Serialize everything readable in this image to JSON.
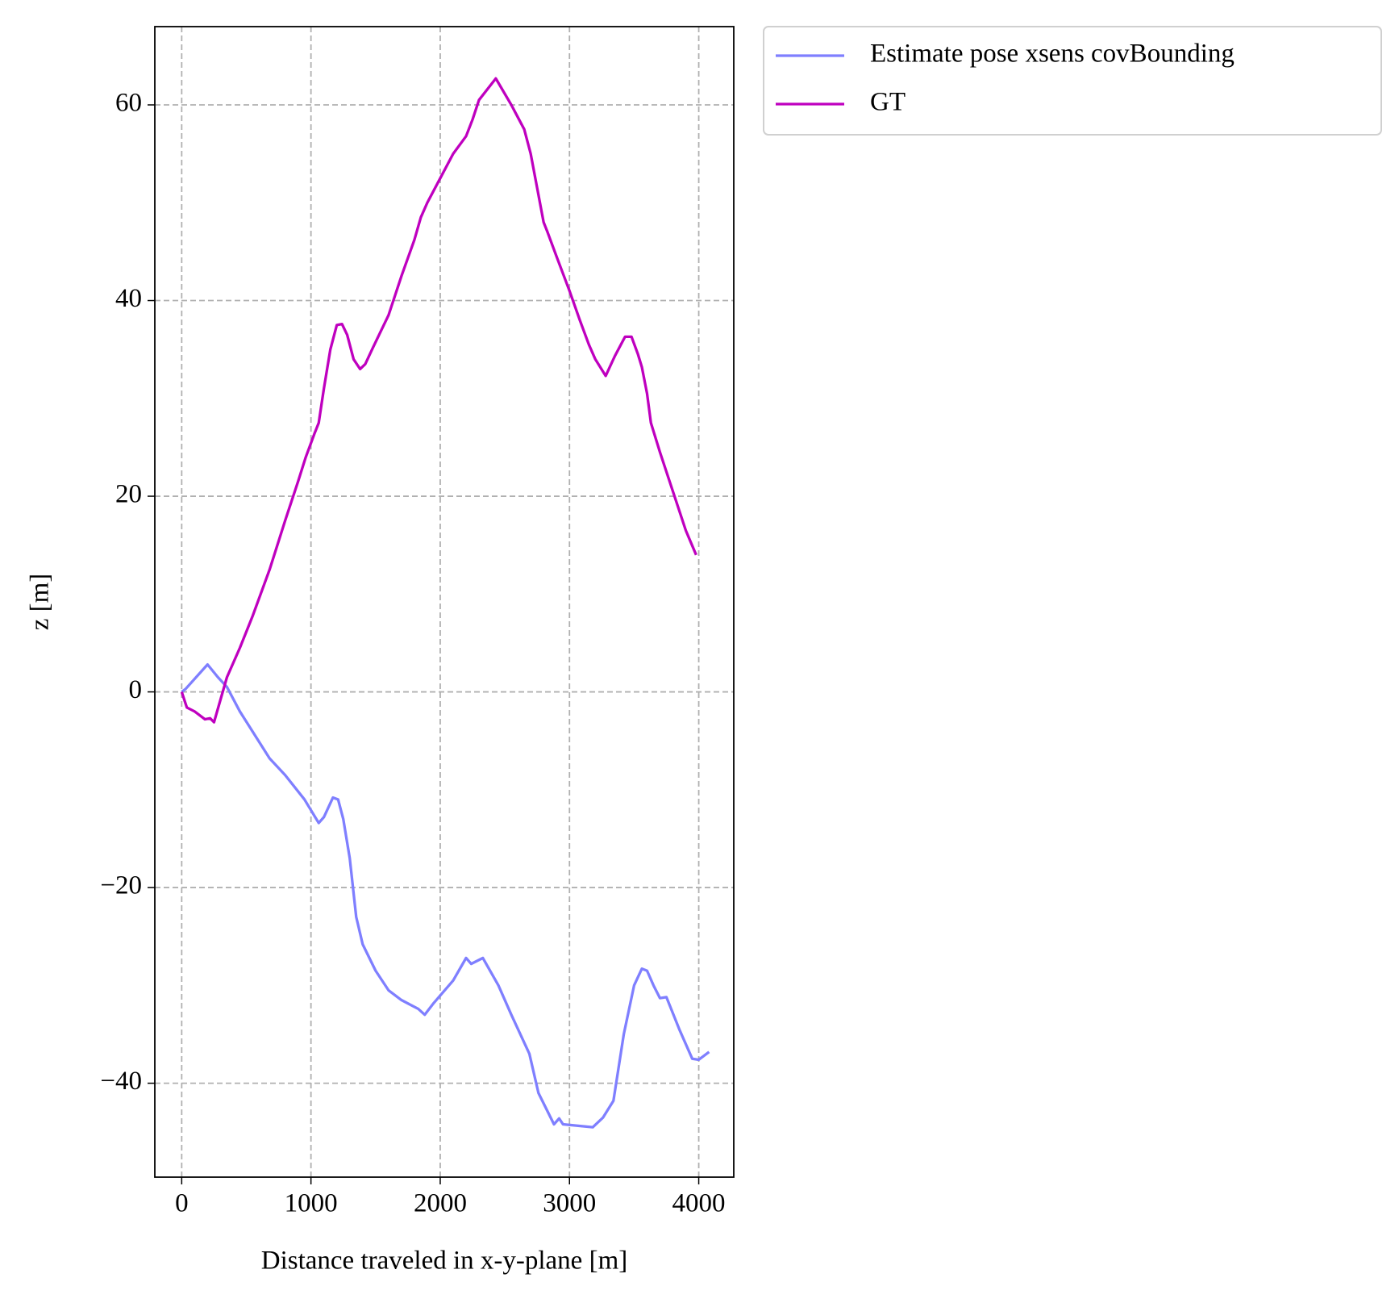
{
  "chart_data": {
    "type": "line",
    "xlabel": "Distance traveled in x-y-plane [m]",
    "ylabel": "z [m]",
    "xlim": [
      -208,
      4271
    ],
    "ylim": [
      -49.6,
      68.0
    ],
    "xticks": [
      0,
      1000,
      2000,
      3000,
      4000
    ],
    "yticks": [
      {
        "value": -40,
        "label": "−40"
      },
      {
        "value": -20,
        "label": "−20"
      },
      0,
      20,
      40,
      60
    ],
    "grid": true,
    "legend": "outside upper right",
    "series": [
      {
        "name": "Estimate pose xsens covBounding",
        "color": "#7f7fff",
        "x": [
          0,
          30,
          200,
          280,
          350,
          450,
          680,
          800,
          950,
          1060,
          1100,
          1170,
          1210,
          1250,
          1300,
          1350,
          1400,
          1500,
          1600,
          1700,
          1830,
          1880,
          1950,
          2100,
          2200,
          2240,
          2330,
          2450,
          2550,
          2690,
          2760,
          2880,
          2920,
          2950,
          3180,
          3260,
          3340,
          3420,
          3500,
          3560,
          3600,
          3650,
          3700,
          3750,
          3850,
          3950,
          4000,
          4080
        ],
        "values": [
          0,
          0.3,
          2.8,
          1.5,
          0.5,
          -2,
          -6.8,
          -8.5,
          -11,
          -13.4,
          -12.8,
          -10.8,
          -11,
          -13,
          -17,
          -23,
          -25.8,
          -28.5,
          -30.5,
          -31.5,
          -32.4,
          -33,
          -31.8,
          -29.5,
          -27.2,
          -27.8,
          -27.2,
          -30,
          -33,
          -37,
          -41,
          -44.2,
          -43.6,
          -44.2,
          -44.5,
          -43.5,
          -41.8,
          -35,
          -30,
          -28.3,
          -28.5,
          -30,
          -31.3,
          -31.2,
          -34.5,
          -37.5,
          -37.6,
          -36.8
        ]
      },
      {
        "name": "GT",
        "color": "#bf00bf",
        "x": [
          0,
          40,
          100,
          180,
          220,
          250,
          300,
          350,
          450,
          550,
          680,
          800,
          900,
          960,
          1030,
          1060,
          1100,
          1150,
          1200,
          1240,
          1280,
          1330,
          1380,
          1420,
          1480,
          1600,
          1700,
          1800,
          1850,
          1900,
          2000,
          2100,
          2200,
          2250,
          2300,
          2430,
          2550,
          2650,
          2700,
          2750,
          2800,
          2830,
          2900,
          3000,
          3080,
          3150,
          3200,
          3280,
          3350,
          3430,
          3480,
          3530,
          3560,
          3600,
          3630,
          3700,
          3800,
          3900,
          3980
        ],
        "values": [
          0,
          -1.6,
          -2,
          -2.8,
          -2.7,
          -3.1,
          -0.8,
          1.5,
          4.5,
          7.8,
          12.5,
          17.5,
          21.5,
          24,
          26.5,
          27.5,
          31,
          35,
          37.5,
          37.6,
          36.5,
          34,
          33,
          33.5,
          35.2,
          38.5,
          42.5,
          46.2,
          48.5,
          50,
          52.5,
          55,
          56.8,
          58.5,
          60.5,
          62.7,
          60,
          57.5,
          55,
          51.5,
          48,
          47,
          44.5,
          41,
          38,
          35.5,
          34,
          32.3,
          34.3,
          36.3,
          36.3,
          34.5,
          33.2,
          30.5,
          27.5,
          24.5,
          20.5,
          16.5,
          14
        ]
      }
    ]
  }
}
